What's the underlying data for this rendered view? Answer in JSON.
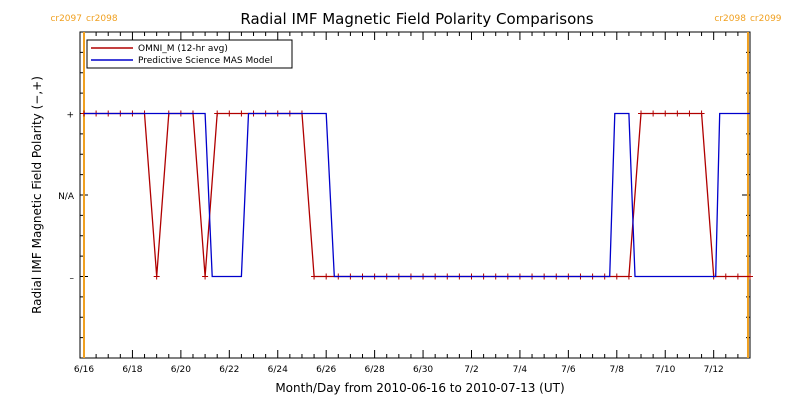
{
  "chart_data": {
    "type": "line",
    "title": "Radial IMF Magnetic Field Polarity Comparisons",
    "xlabel": "Month/Day from 2010-06-16 to 2010-07-13 (UT)",
    "ylabel": "Radial IMF Magnetic Field Polarity (−,+)",
    "x_range": [
      "2010-06-16",
      "2010-07-13T12:00"
    ],
    "y_ticks": [
      {
        "value": 1,
        "label": "+"
      },
      {
        "value": 0,
        "label": "N/A"
      },
      {
        "value": -1,
        "label": "–"
      }
    ],
    "ylim": [
      -2,
      2
    ],
    "x_ticks": [
      {
        "value": "2010-06-16",
        "label": "6/16"
      },
      {
        "value": "2010-06-18",
        "label": "6/18"
      },
      {
        "value": "2010-06-20",
        "label": "6/20"
      },
      {
        "value": "2010-06-22",
        "label": "6/22"
      },
      {
        "value": "2010-06-24",
        "label": "6/24"
      },
      {
        "value": "2010-06-26",
        "label": "6/26"
      },
      {
        "value": "2010-06-28",
        "label": "6/28"
      },
      {
        "value": "2010-06-30",
        "label": "6/30"
      },
      {
        "value": "2010-07-02",
        "label": "7/2"
      },
      {
        "value": "2010-07-04",
        "label": "7/4"
      },
      {
        "value": "2010-07-06",
        "label": "7/6"
      },
      {
        "value": "2010-07-08",
        "label": "7/8"
      },
      {
        "value": "2010-07-10",
        "label": "7/10"
      },
      {
        "value": "2010-07-12",
        "label": "7/12"
      }
    ],
    "carrington_markers": [
      {
        "date": "2010-06-16",
        "label_left": "cr2097",
        "label_right": "cr2098"
      },
      {
        "date": "2010-07-13T10:00",
        "label_left": "cr2098",
        "label_right": "cr2099"
      }
    ],
    "legend_position": "top-left",
    "series": [
      {
        "name": "OMNI_M (12-hr avg)",
        "color": "#b00000",
        "marker": "plus",
        "x": [
          "2010-06-16T00:00",
          "2010-06-16T12:00",
          "2010-06-17T00:00",
          "2010-06-17T12:00",
          "2010-06-18T00:00",
          "2010-06-18T12:00",
          "2010-06-19T00:00",
          "2010-06-19T12:00",
          "2010-06-20T00:00",
          "2010-06-20T12:00",
          "2010-06-21T00:00",
          "2010-06-21T12:00",
          "2010-06-22T00:00",
          "2010-06-22T12:00",
          "2010-06-23T00:00",
          "2010-06-23T12:00",
          "2010-06-24T00:00",
          "2010-06-24T12:00",
          "2010-06-25T00:00",
          "2010-06-25T12:00",
          "2010-06-26T00:00",
          "2010-06-26T12:00",
          "2010-06-27T00:00",
          "2010-06-27T12:00",
          "2010-06-28T00:00",
          "2010-06-28T12:00",
          "2010-06-29T00:00",
          "2010-06-29T12:00",
          "2010-06-30T00:00",
          "2010-06-30T12:00",
          "2010-07-01T00:00",
          "2010-07-01T12:00",
          "2010-07-02T00:00",
          "2010-07-02T12:00",
          "2010-07-03T00:00",
          "2010-07-03T12:00",
          "2010-07-04T00:00",
          "2010-07-04T12:00",
          "2010-07-05T00:00",
          "2010-07-05T12:00",
          "2010-07-06T00:00",
          "2010-07-06T12:00",
          "2010-07-07T00:00",
          "2010-07-07T12:00",
          "2010-07-08T00:00",
          "2010-07-08T12:00",
          "2010-07-09T00:00",
          "2010-07-09T12:00",
          "2010-07-10T00:00",
          "2010-07-10T12:00",
          "2010-07-11T00:00",
          "2010-07-11T12:00",
          "2010-07-12T00:00",
          "2010-07-12T12:00",
          "2010-07-13T00:00",
          "2010-07-13T12:00"
        ],
        "values": [
          1,
          1,
          1,
          1,
          1,
          1,
          -1,
          1,
          1,
          1,
          -1,
          1,
          1,
          1,
          1,
          1,
          1,
          1,
          1,
          -1,
          -1,
          -1,
          -1,
          -1,
          -1,
          -1,
          -1,
          -1,
          -1,
          -1,
          -1,
          -1,
          -1,
          -1,
          -1,
          -1,
          -1,
          -1,
          -1,
          -1,
          -1,
          -1,
          -1,
          -1,
          -1,
          -1,
          1,
          1,
          1,
          1,
          1,
          1,
          -1,
          -1,
          -1,
          -1
        ]
      },
      {
        "name": "Predictive Science MAS Model",
        "color": "#0000cc",
        "marker": "none",
        "x": [
          "2010-06-16T00:00",
          "2010-06-21T00:00",
          "2010-06-21T07:00",
          "2010-06-22T12:00",
          "2010-06-22T19:00",
          "2010-06-26T00:00",
          "2010-06-26T08:00",
          "2010-07-07T17:00",
          "2010-07-07T22:00",
          "2010-07-08T12:00",
          "2010-07-08T18:00",
          "2010-07-12T02:00",
          "2010-07-12T06:00",
          "2010-07-13T12:00"
        ],
        "values": [
          1,
          1,
          -1,
          -1,
          1,
          1,
          -1,
          -1,
          1,
          1,
          -1,
          -1,
          1,
          1
        ]
      }
    ]
  }
}
